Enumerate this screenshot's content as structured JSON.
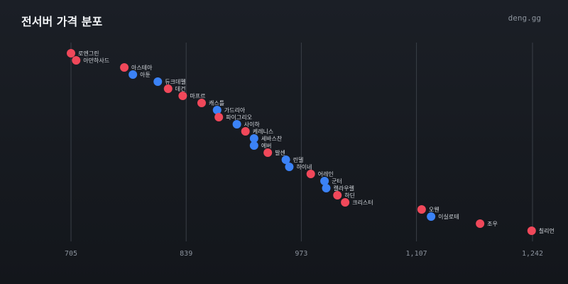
{
  "header": {
    "title": "전서버 가격 분포",
    "brand": "deng.gg"
  },
  "colors": {
    "red": "#f0485a",
    "blue": "#3b82f6",
    "background": "#16191f",
    "grid": "#3a3f47"
  },
  "chart_data": {
    "type": "scatter",
    "title": "전서버 가격 분포",
    "xlabel": "",
    "ylabel": "",
    "xlim": [
      705,
      1242
    ],
    "xticks": [
      705,
      839,
      973,
      1107,
      1242
    ],
    "xtick_labels": [
      "705",
      "839",
      "973",
      "1,107",
      "1,242"
    ],
    "grid": "vertical",
    "legend": "none",
    "points": [
      {
        "label": "로엔그린",
        "x": 705,
        "color": "red"
      },
      {
        "label": "아만하사드",
        "x": 711,
        "color": "red"
      },
      {
        "label": "아스테아",
        "x": 767,
        "color": "red"
      },
      {
        "label": "아툰",
        "x": 777,
        "color": "blue"
      },
      {
        "label": "듀크데펠",
        "x": 806,
        "color": "blue"
      },
      {
        "label": "데건",
        "x": 818,
        "color": "red"
      },
      {
        "label": "마프르",
        "x": 835,
        "color": "red"
      },
      {
        "label": "캐스틀",
        "x": 857,
        "color": "red"
      },
      {
        "label": "가드리아",
        "x": 875,
        "color": "blue"
      },
      {
        "label": "파이그리오",
        "x": 877,
        "color": "red"
      },
      {
        "label": "사이하",
        "x": 898,
        "color": "blue"
      },
      {
        "label": "케레니스",
        "x": 908,
        "color": "red"
      },
      {
        "label": "세바스찬",
        "x": 918,
        "color": "blue"
      },
      {
        "label": "에버",
        "x": 918,
        "color": "blue"
      },
      {
        "label": "발센",
        "x": 934,
        "color": "red"
      },
      {
        "label": "린델",
        "x": 955,
        "color": "blue"
      },
      {
        "label": "하이네",
        "x": 959,
        "color": "blue"
      },
      {
        "label": "어레인",
        "x": 984,
        "color": "red"
      },
      {
        "label": "군터",
        "x": 1000,
        "color": "blue"
      },
      {
        "label": "켈라우렐",
        "x": 1002,
        "color": "blue"
      },
      {
        "label": "하딘",
        "x": 1015,
        "color": "red"
      },
      {
        "label": "크리스터",
        "x": 1024,
        "color": "red"
      },
      {
        "label": "오웬",
        "x": 1113,
        "color": "red"
      },
      {
        "label": "이실로테",
        "x": 1124,
        "color": "blue"
      },
      {
        "label": "조우",
        "x": 1181,
        "color": "red"
      },
      {
        "label": "칠리언",
        "x": 1241,
        "color": "red"
      }
    ]
  }
}
